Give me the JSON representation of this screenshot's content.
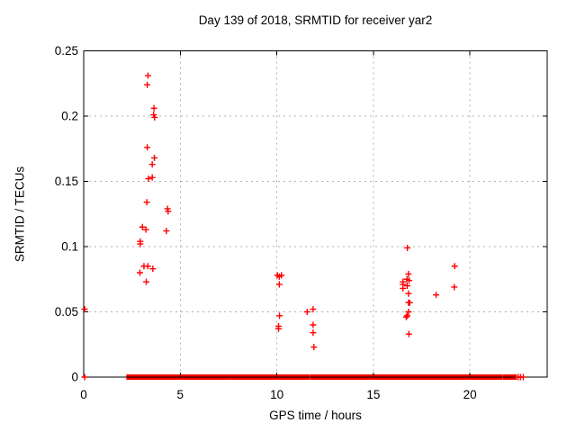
{
  "chart_data": {
    "type": "scatter",
    "title": "Day 139 of 2018, SRMTID for receiver yar2",
    "xlabel": "GPS time / hours",
    "ylabel": "SRMTID / TECUs",
    "xlim": [
      0,
      24
    ],
    "ylim": [
      0,
      0.25
    ],
    "x_ticks": [
      0,
      5,
      10,
      15,
      20
    ],
    "x_tick_labels": [
      "0",
      "5",
      "10",
      "15",
      "20"
    ],
    "y_ticks": [
      0,
      0.05,
      0.1,
      0.15,
      0.2,
      0.25
    ],
    "y_tick_labels": [
      "0",
      "0.05",
      "0.1",
      "0.15",
      "0.2",
      "0.25"
    ],
    "grid": true,
    "legend": "none",
    "marker": "plus",
    "marker_color": "#ff0000",
    "grid_color": "#b0b0b0",
    "axis_color": "#000000",
    "series": [
      {
        "name": "SRMTID",
        "points": [
          [
            0.05,
            0.052
          ],
          [
            3.33,
            0.231
          ],
          [
            3.29,
            0.224
          ],
          [
            3.64,
            0.206
          ],
          [
            3.62,
            0.201
          ],
          [
            3.67,
            0.199
          ],
          [
            3.29,
            0.176
          ],
          [
            3.66,
            0.168
          ],
          [
            3.55,
            0.163
          ],
          [
            3.35,
            0.152
          ],
          [
            3.55,
            0.153
          ],
          [
            3.27,
            0.134
          ],
          [
            4.34,
            0.129
          ],
          [
            4.37,
            0.127
          ],
          [
            3.04,
            0.115
          ],
          [
            3.22,
            0.113
          ],
          [
            4.28,
            0.112
          ],
          [
            2.93,
            0.104
          ],
          [
            2.93,
            0.102
          ],
          [
            3.12,
            0.085
          ],
          [
            3.32,
            0.085
          ],
          [
            3.58,
            0.083
          ],
          [
            2.91,
            0.08
          ],
          [
            3.24,
            0.073
          ],
          [
            10.03,
            0.078
          ],
          [
            10.13,
            0.077
          ],
          [
            10.24,
            0.078
          ],
          [
            10.13,
            0.071
          ],
          [
            10.14,
            0.047
          ],
          [
            10.09,
            0.039
          ],
          [
            10.09,
            0.037
          ],
          [
            11.57,
            0.05
          ],
          [
            11.88,
            0.052
          ],
          [
            11.88,
            0.04
          ],
          [
            11.88,
            0.034
          ],
          [
            11.92,
            0.023
          ],
          [
            16.76,
            0.099
          ],
          [
            16.82,
            0.079
          ],
          [
            16.74,
            0.075
          ],
          [
            16.85,
            0.074
          ],
          [
            16.53,
            0.073
          ],
          [
            16.53,
            0.071
          ],
          [
            16.75,
            0.07
          ],
          [
            16.53,
            0.068
          ],
          [
            16.82,
            0.064
          ],
          [
            16.82,
            0.057
          ],
          [
            16.88,
            0.057
          ],
          [
            16.82,
            0.05
          ],
          [
            16.75,
            0.047
          ],
          [
            16.7,
            0.046
          ],
          [
            16.84,
            0.033
          ],
          [
            18.25,
            0.063
          ],
          [
            19.19,
            0.069
          ],
          [
            19.21,
            0.085
          ],
          [
            0.05,
            0.0
          ]
        ]
      }
    ],
    "baseline_band_segments_hours": [
      [
        2.3,
        3.25
      ],
      [
        3.31,
        7.52
      ],
      [
        7.7,
        7.8
      ],
      [
        7.97,
        11.6
      ],
      [
        11.8,
        17.66
      ],
      [
        17.81,
        21.6
      ],
      [
        21.8,
        22.34
      ]
    ],
    "baseline_isolated_points_hours": [
      22.5,
      22.62,
      22.76
    ]
  }
}
